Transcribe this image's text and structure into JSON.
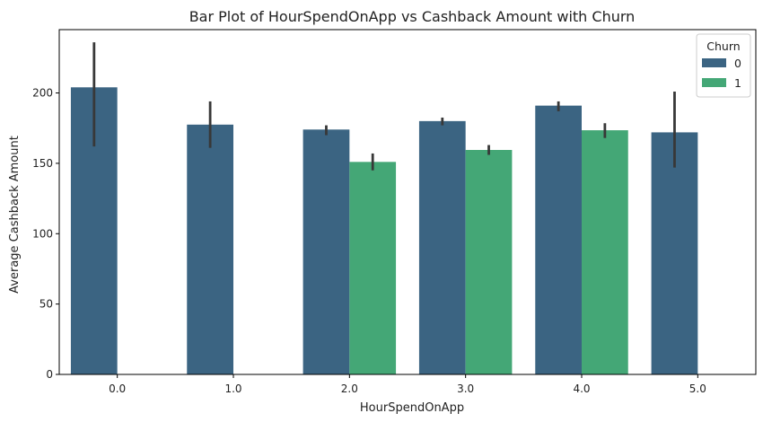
{
  "chart_data": {
    "type": "bar",
    "title": "Bar Plot of HourSpendOnApp vs Cashback Amount with Churn",
    "xlabel": "HourSpendOnApp",
    "ylabel": "Average Cashback Amount",
    "categories": [
      "0.0",
      "1.0",
      "2.0",
      "3.0",
      "4.0",
      "5.0"
    ],
    "ylim": [
      0,
      245
    ],
    "yticks": [
      0,
      50,
      100,
      150,
      200
    ],
    "grid": false,
    "legend": {
      "title": "Churn",
      "placement": "top-right"
    },
    "series": [
      {
        "name": "0",
        "color": "#3b6482",
        "values": [
          204,
          177.5,
          174,
          180,
          191,
          172
        ],
        "err_low": [
          162,
          161,
          170,
          177,
          187,
          147
        ],
        "err_high": [
          236,
          194,
          177,
          182.5,
          194,
          201
        ]
      },
      {
        "name": "1",
        "color": "#44a776",
        "values": [
          null,
          null,
          151,
          159.5,
          173.5,
          null
        ],
        "err_low": [
          null,
          null,
          145,
          156,
          168,
          null
        ],
        "err_high": [
          null,
          null,
          157,
          163,
          178.5,
          null
        ]
      }
    ],
    "errorbar_color": "#383838"
  }
}
